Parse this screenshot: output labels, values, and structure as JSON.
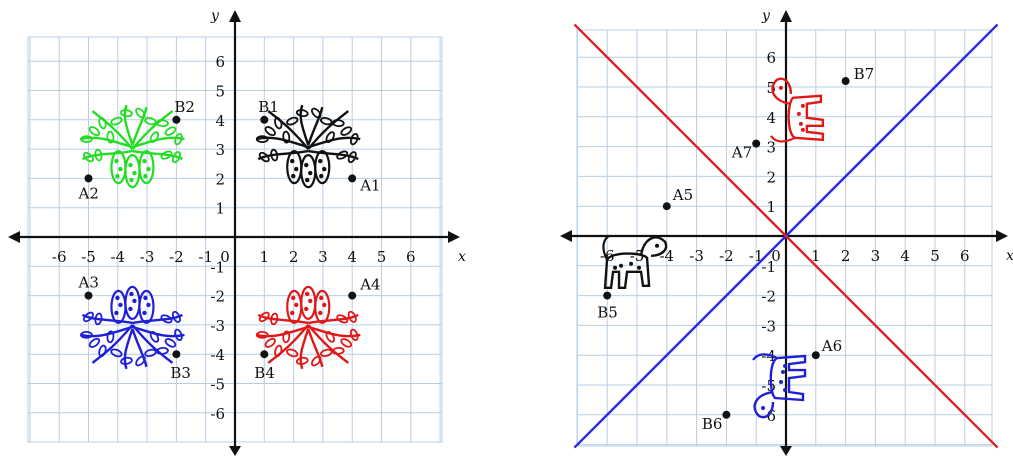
{
  "colors": {
    "grid": "#b7cfe4",
    "axis": "#111111",
    "green": "#22dd22",
    "black": "#111111",
    "blue": "#1f1fd6",
    "red": "#e01818",
    "line_red": "#d8262a",
    "line_blue": "#2a2ae0"
  },
  "left_graph": {
    "x_axis_label": "x",
    "y_axis_label": "y",
    "x_ticks": [
      "-6",
      "-5",
      "-4",
      "-3",
      "-2",
      "-1",
      "0",
      "1",
      "2",
      "3",
      "4",
      "5",
      "6"
    ],
    "y_ticks": [
      "6",
      "5",
      "4",
      "3",
      "2",
      "1",
      "-1",
      "-2",
      "-3",
      "-4",
      "-5",
      "-6"
    ],
    "x_tick_values": [
      -6,
      -5,
      -4,
      -3,
      -2,
      -1,
      0,
      1,
      2,
      3,
      4,
      5,
      6
    ],
    "y_tick_values": [
      6,
      5,
      4,
      3,
      2,
      1,
      -1,
      -2,
      -3,
      -4,
      -5,
      -6
    ],
    "figures": [
      {
        "name": "green-plant-figure",
        "color": "green",
        "center": [
          -3.5,
          3
        ],
        "flip": false
      },
      {
        "name": "black-plant-figure",
        "color": "black",
        "center": [
          2.5,
          3
        ],
        "flip": false
      },
      {
        "name": "blue-plant-figure",
        "color": "blue",
        "center": [
          -3.5,
          -3
        ],
        "flip": true
      },
      {
        "name": "red-plant-figure",
        "color": "red",
        "center": [
          2.5,
          -3
        ],
        "flip": true
      }
    ],
    "points": [
      {
        "label": "B2",
        "x": -2,
        "y": 4
      },
      {
        "label": "A2",
        "x": -5,
        "y": 2
      },
      {
        "label": "B1",
        "x": 1,
        "y": 4
      },
      {
        "label": "A1",
        "x": 4,
        "y": 2
      },
      {
        "label": "A3",
        "x": -5,
        "y": -2
      },
      {
        "label": "B3",
        "x": -2,
        "y": -4
      },
      {
        "label": "A4",
        "x": 4,
        "y": -2
      },
      {
        "label": "B4",
        "x": 1,
        "y": -4
      }
    ]
  },
  "right_graph": {
    "x_axis_label": "x",
    "y_axis_label": "y",
    "x_ticks": [
      "-6",
      "-5",
      "-4",
      "-3",
      "-2",
      "-1",
      "0",
      "1",
      "2",
      "3",
      "4",
      "5",
      "6"
    ],
    "y_ticks": [
      "6",
      "5",
      "4",
      "3",
      "2",
      "1",
      "-1",
      "-2",
      "-3",
      "-4",
      "-5",
      "-6"
    ],
    "x_tick_values": [
      -6,
      -5,
      -4,
      -3,
      -2,
      -1,
      0,
      1,
      2,
      3,
      4,
      5,
      6
    ],
    "y_tick_values": [
      6,
      5,
      4,
      3,
      2,
      1,
      -1,
      -2,
      -3,
      -4,
      -5,
      -6
    ],
    "lines": [
      {
        "name": "line-y-equals-x",
        "color": "line_blue",
        "slope": 1
      },
      {
        "name": "line-y-equals-negative-x",
        "color": "line_red",
        "slope": -1
      }
    ],
    "figures": [
      {
        "name": "black-animal-figure",
        "color": "black",
        "center": [
          -5.2,
          -1
        ]
      },
      {
        "name": "red-animal-figure",
        "color": "red",
        "center": [
          0.5,
          4.1
        ]
      },
      {
        "name": "blue-animal-figure",
        "color": "blue",
        "center": [
          -0.1,
          -4.9
        ]
      }
    ],
    "points": [
      {
        "label": "A5",
        "x": -4,
        "y": 1
      },
      {
        "label": "B5",
        "x": -6,
        "y": -2
      },
      {
        "label": "B7",
        "x": 2,
        "y": 5.2
      },
      {
        "label": "A7",
        "x": -1,
        "y": 3.1
      },
      {
        "label": "A6",
        "x": 1,
        "y": -4
      },
      {
        "label": "B6",
        "x": -2,
        "y": -6
      }
    ]
  }
}
